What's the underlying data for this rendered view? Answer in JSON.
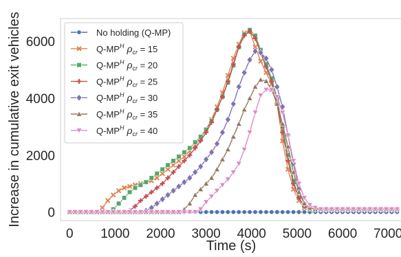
{
  "chart_data": {
    "type": "line",
    "title": "",
    "xlabel": "Time (s)",
    "ylabel": "Increase in cumulative exit vehicles",
    "xlim": [
      -200,
      7300
    ],
    "ylim": [
      -300,
      6800
    ],
    "xticks": [
      0,
      1000,
      2000,
      3000,
      4000,
      5000,
      6000,
      7000
    ],
    "yticks": [
      0,
      2000,
      4000,
      6000
    ],
    "grid": false,
    "legend_position": "top-left",
    "x": [
      0,
      120,
      240,
      360,
      480,
      600,
      720,
      840,
      960,
      1080,
      1200,
      1320,
      1440,
      1560,
      1680,
      1800,
      1920,
      2040,
      2160,
      2280,
      2400,
      2520,
      2640,
      2760,
      2880,
      3000,
      3120,
      3240,
      3360,
      3480,
      3600,
      3720,
      3840,
      3960,
      4080,
      4200,
      4320,
      4440,
      4560,
      4680,
      4800,
      4920,
      5040,
      5160,
      5280,
      5400,
      5520,
      5640,
      5760,
      5880,
      6000,
      6120,
      6240,
      6360,
      6480,
      6600,
      6720,
      6840,
      6960,
      7080,
      7200
    ],
    "series": [
      {
        "name": "No holding (Q-MP)",
        "color": "#4c72b0",
        "marker": "circle",
        "values": [
          0,
          0,
          0,
          0,
          0,
          0,
          0,
          0,
          0,
          0,
          0,
          0,
          0,
          0,
          0,
          0,
          0,
          0,
          0,
          0,
          0,
          0,
          0,
          0,
          0,
          0,
          0,
          0,
          0,
          0,
          0,
          0,
          0,
          0,
          0,
          0,
          0,
          0,
          0,
          0,
          0,
          0,
          0,
          0,
          0,
          0,
          0,
          0,
          0,
          0,
          0,
          0,
          0,
          0,
          0,
          0,
          0,
          0,
          0,
          0,
          0
        ]
      },
      {
        "name": "Q-MP^H ρ_cr = 15",
        "color": "#dd8452",
        "marker": "x",
        "values": [
          0,
          0,
          0,
          0,
          0,
          0,
          150,
          400,
          600,
          750,
          850,
          900,
          950,
          1000,
          1050,
          1100,
          1200,
          1350,
          1500,
          1650,
          1800,
          1950,
          2150,
          2350,
          2600,
          2900,
          3250,
          3700,
          4200,
          4800,
          5400,
          5900,
          6300,
          6350,
          5800,
          5300,
          4900,
          4500,
          3800,
          2500,
          1500,
          800,
          400,
          150,
          100,
          100,
          100,
          100,
          100,
          100,
          100,
          100,
          100,
          100,
          100,
          100,
          100,
          100,
          100,
          100,
          100
        ]
      },
      {
        "name": "Q-MP^H ρ_cr = 20",
        "color": "#55a868",
        "marker": "square",
        "values": [
          0,
          0,
          0,
          0,
          0,
          0,
          0,
          0,
          100,
          300,
          500,
          700,
          850,
          950,
          1050,
          1200,
          1350,
          1500,
          1650,
          1800,
          1950,
          2100,
          2250,
          2450,
          2650,
          2900,
          3200,
          3600,
          4050,
          4550,
          5150,
          5800,
          6250,
          6400,
          6200,
          5700,
          5200,
          4700,
          4000,
          3000,
          2000,
          1100,
          500,
          200,
          100,
          100,
          100,
          100,
          100,
          100,
          100,
          100,
          100,
          100,
          100,
          100,
          100,
          100,
          100,
          100,
          100
        ]
      },
      {
        "name": "Q-MP^H ρ_cr = 25",
        "color": "#c44e52",
        "marker": "plus",
        "values": [
          0,
          0,
          0,
          0,
          0,
          0,
          0,
          0,
          0,
          0,
          0,
          50,
          200,
          400,
          550,
          700,
          850,
          1000,
          1200,
          1400,
          1600,
          1800,
          2000,
          2250,
          2500,
          2800,
          3150,
          3600,
          4050,
          4600,
          5200,
          5800,
          6200,
          6350,
          6100,
          5600,
          5100,
          4600,
          3800,
          2800,
          1800,
          1000,
          500,
          200,
          100,
          100,
          100,
          100,
          100,
          100,
          100,
          100,
          100,
          100,
          100,
          100,
          100,
          100,
          100,
          100,
          100
        ]
      },
      {
        "name": "Q-MP^H ρ_cr = 30",
        "color": "#8172b3",
        "marker": "diamond",
        "values": [
          0,
          0,
          0,
          0,
          0,
          0,
          0,
          0,
          0,
          0,
          0,
          0,
          0,
          0,
          50,
          150,
          300,
          450,
          600,
          750,
          900,
          1050,
          1200,
          1400,
          1600,
          1850,
          2100,
          2400,
          2800,
          3250,
          3800,
          4400,
          4900,
          5350,
          5650,
          5600,
          5400,
          5000,
          4400,
          3700,
          2700,
          1700,
          800,
          300,
          150,
          100,
          100,
          100,
          100,
          100,
          100,
          100,
          100,
          100,
          100,
          100,
          100,
          100,
          100,
          100,
          100
        ]
      },
      {
        "name": "Q-MP^H ρ_cr = 35",
        "color": "#937860",
        "marker": "triangle-up",
        "values": [
          0,
          0,
          0,
          0,
          0,
          0,
          0,
          0,
          0,
          0,
          0,
          0,
          0,
          0,
          0,
          0,
          0,
          0,
          0,
          0,
          0,
          100,
          300,
          600,
          800,
          1000,
          1200,
          1500,
          1850,
          2200,
          2650,
          3100,
          3600,
          4000,
          4400,
          4650,
          4600,
          4300,
          3800,
          3100,
          2300,
          1400,
          700,
          300,
          150,
          100,
          100,
          100,
          100,
          100,
          100,
          100,
          100,
          100,
          100,
          100,
          100,
          100,
          100,
          100,
          100
        ]
      },
      {
        "name": "Q-MP^H ρ_cr = 40",
        "color": "#da8bc3",
        "marker": "triangle-down",
        "values": [
          0,
          0,
          0,
          0,
          0,
          0,
          0,
          0,
          0,
          0,
          0,
          0,
          0,
          0,
          0,
          0,
          0,
          0,
          0,
          0,
          0,
          0,
          0,
          0,
          100,
          350,
          550,
          750,
          950,
          1150,
          1400,
          1700,
          2200,
          2800,
          3500,
          4100,
          4300,
          4300,
          4050,
          3500,
          2700,
          1800,
          1000,
          500,
          250,
          150,
          100,
          100,
          100,
          100,
          100,
          100,
          100,
          100,
          100,
          100,
          100,
          100,
          100,
          100,
          100
        ]
      }
    ]
  },
  "legend": {
    "items": [
      {
        "base": "No holding (Q-MP)",
        "sup": "",
        "sym": "",
        "sub": "",
        "eq": ""
      },
      {
        "base": "Q-MP",
        "sup": "H",
        "sym": "ρ",
        "sub": "cr",
        "eq": " = 15"
      },
      {
        "base": "Q-MP",
        "sup": "H",
        "sym": "ρ",
        "sub": "cr",
        "eq": " = 20"
      },
      {
        "base": "Q-MP",
        "sup": "H",
        "sym": "ρ",
        "sub": "cr",
        "eq": " = 25"
      },
      {
        "base": "Q-MP",
        "sup": "H",
        "sym": "ρ",
        "sub": "cr",
        "eq": " = 30"
      },
      {
        "base": "Q-MP",
        "sup": "H",
        "sym": "ρ",
        "sub": "cr",
        "eq": " = 35"
      },
      {
        "base": "Q-MP",
        "sup": "H",
        "sym": "ρ",
        "sub": "cr",
        "eq": " = 40"
      }
    ]
  }
}
